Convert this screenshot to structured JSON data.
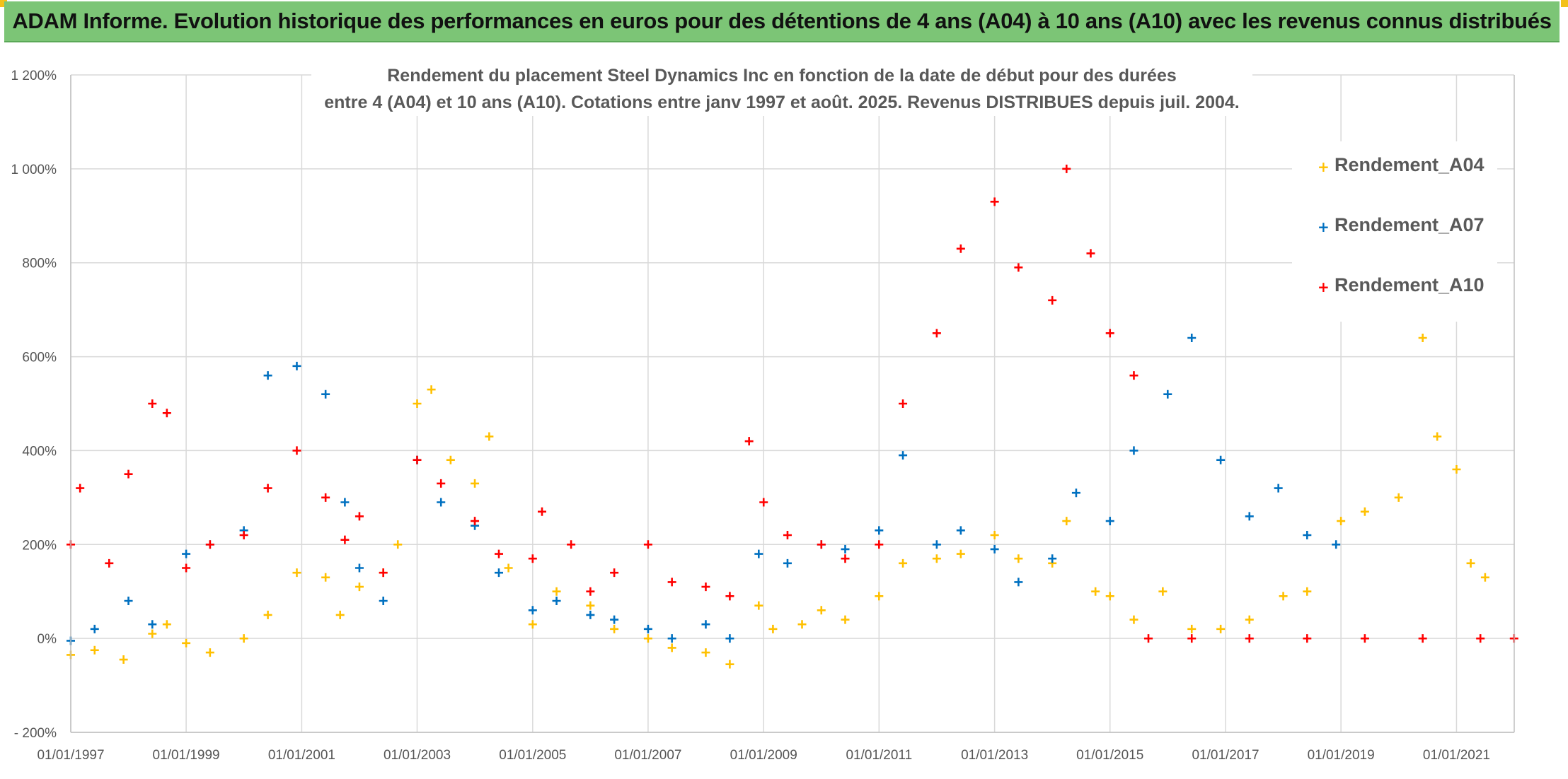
{
  "banner": {
    "title": "ADAM Informe. Evolution historique des performances en euros pour des détentions de 4 ans (A04) à 10 ans (A10) avec les revenus connus distribués"
  },
  "chart_data": {
    "type": "scatter",
    "title_line1": "Rendement du placement Steel Dynamics Inc en fonction de la date de début pour des durées",
    "title_line2": "entre 4 (A04) et 10 ans (A10). Cotations entre janv 1997 et août. 2025. Revenus DISTRIBUES depuis juil. 2004.",
    "xlabel": "",
    "ylabel": "",
    "x_range": [
      "1997-01-01",
      "2022-01-01"
    ],
    "ylim": [
      -200,
      1200
    ],
    "y_ticks": [
      -200,
      0,
      200,
      400,
      600,
      800,
      1000,
      1200
    ],
    "y_tick_labels": [
      "- 200%",
      "0%",
      "200%",
      "400%",
      "600%",
      "800%",
      "1 000%",
      "1 200%"
    ],
    "x_ticks": [
      "1997-01-01",
      "1999-01-01",
      "2001-01-01",
      "2003-01-01",
      "2005-01-01",
      "2007-01-01",
      "2009-01-01",
      "2011-01-01",
      "2013-01-01",
      "2015-01-01",
      "2017-01-01",
      "2019-01-01",
      "2021-01-01"
    ],
    "x_tick_labels": [
      "01/01/1997",
      "01/01/1999",
      "01/01/2001",
      "01/01/2003",
      "01/01/2005",
      "01/01/2007",
      "01/01/2009",
      "01/01/2011",
      "01/01/2013",
      "01/01/2015",
      "01/01/2017",
      "01/01/2019",
      "01/01/2021"
    ],
    "grid": true,
    "legend_position": "right",
    "marker": "+",
    "series": [
      {
        "name": "Rendement_A04",
        "color": "#ffc000",
        "points": [
          [
            "1997-01-01",
            -35
          ],
          [
            "1997-06-01",
            -25
          ],
          [
            "1997-12-01",
            -45
          ],
          [
            "1998-06-01",
            10
          ],
          [
            "1998-09-01",
            30
          ],
          [
            "1999-01-01",
            -10
          ],
          [
            "1999-06-01",
            -30
          ],
          [
            "2000-01-01",
            0
          ],
          [
            "2000-06-01",
            50
          ],
          [
            "2000-12-01",
            140
          ],
          [
            "2001-06-01",
            130
          ],
          [
            "2001-09-01",
            50
          ],
          [
            "2002-01-01",
            110
          ],
          [
            "2002-06-01",
            140
          ],
          [
            "2002-09-01",
            200
          ],
          [
            "2003-01-01",
            500
          ],
          [
            "2003-04-01",
            530
          ],
          [
            "2003-08-01",
            380
          ],
          [
            "2004-01-01",
            330
          ],
          [
            "2004-04-01",
            430
          ],
          [
            "2004-08-01",
            150
          ],
          [
            "2005-01-01",
            30
          ],
          [
            "2005-06-01",
            100
          ],
          [
            "2006-01-01",
            70
          ],
          [
            "2006-06-01",
            20
          ],
          [
            "2007-01-01",
            0
          ],
          [
            "2007-06-01",
            -20
          ],
          [
            "2008-01-01",
            -30
          ],
          [
            "2008-06-01",
            -55
          ],
          [
            "2008-12-01",
            70
          ],
          [
            "2009-03-01",
            20
          ],
          [
            "2009-09-01",
            30
          ],
          [
            "2010-01-01",
            60
          ],
          [
            "2010-06-01",
            40
          ],
          [
            "2011-01-01",
            90
          ],
          [
            "2011-06-01",
            160
          ],
          [
            "2012-01-01",
            170
          ],
          [
            "2012-06-01",
            180
          ],
          [
            "2013-01-01",
            220
          ],
          [
            "2013-06-01",
            170
          ],
          [
            "2014-01-01",
            160
          ],
          [
            "2014-04-01",
            250
          ],
          [
            "2014-10-01",
            100
          ],
          [
            "2015-01-01",
            90
          ],
          [
            "2015-06-01",
            40
          ],
          [
            "2015-12-01",
            100
          ],
          [
            "2016-06-01",
            20
          ],
          [
            "2016-12-01",
            20
          ],
          [
            "2017-06-01",
            40
          ],
          [
            "2018-01-01",
            90
          ],
          [
            "2018-06-01",
            100
          ],
          [
            "2019-01-01",
            250
          ],
          [
            "2019-06-01",
            270
          ],
          [
            "2020-01-01",
            300
          ],
          [
            "2020-06-01",
            640
          ],
          [
            "2020-09-01",
            430
          ],
          [
            "2021-01-01",
            360
          ],
          [
            "2021-04-01",
            160
          ],
          [
            "2021-07-01",
            130
          ]
        ]
      },
      {
        "name": "Rendement_A07",
        "color": "#0070c0",
        "points": [
          [
            "1997-01-01",
            -5
          ],
          [
            "1997-06-01",
            20
          ],
          [
            "1998-01-01",
            80
          ],
          [
            "1998-06-01",
            30
          ],
          [
            "1999-01-01",
            180
          ],
          [
            "1999-06-01",
            200
          ],
          [
            "2000-01-01",
            230
          ],
          [
            "2000-06-01",
            560
          ],
          [
            "2000-12-01",
            580
          ],
          [
            "2001-06-01",
            520
          ],
          [
            "2001-10-01",
            290
          ],
          [
            "2002-01-01",
            150
          ],
          [
            "2002-06-01",
            80
          ],
          [
            "2003-01-01",
            380
          ],
          [
            "2003-06-01",
            290
          ],
          [
            "2004-01-01",
            240
          ],
          [
            "2004-06-01",
            140
          ],
          [
            "2005-01-01",
            60
          ],
          [
            "2005-06-01",
            80
          ],
          [
            "2006-01-01",
            50
          ],
          [
            "2006-06-01",
            40
          ],
          [
            "2007-01-01",
            20
          ],
          [
            "2007-06-01",
            0
          ],
          [
            "2008-01-01",
            30
          ],
          [
            "2008-06-01",
            0
          ],
          [
            "2008-12-01",
            180
          ],
          [
            "2009-06-01",
            160
          ],
          [
            "2010-01-01",
            200
          ],
          [
            "2010-06-01",
            190
          ],
          [
            "2011-01-01",
            230
          ],
          [
            "2011-06-01",
            390
          ],
          [
            "2012-01-01",
            200
          ],
          [
            "2012-06-01",
            230
          ],
          [
            "2013-01-01",
            190
          ],
          [
            "2013-06-01",
            120
          ],
          [
            "2014-01-01",
            170
          ],
          [
            "2014-06-01",
            310
          ],
          [
            "2015-01-01",
            250
          ],
          [
            "2015-06-01",
            400
          ],
          [
            "2016-01-01",
            520
          ],
          [
            "2016-06-01",
            640
          ],
          [
            "2016-12-01",
            380
          ],
          [
            "2017-06-01",
            260
          ],
          [
            "2017-12-01",
            320
          ],
          [
            "2018-06-01",
            220
          ],
          [
            "2018-12-01",
            200
          ]
        ]
      },
      {
        "name": "Rendement_A10",
        "color": "#ff0000",
        "points": [
          [
            "1997-01-01",
            200
          ],
          [
            "1997-03-01",
            320
          ],
          [
            "1997-09-01",
            160
          ],
          [
            "1998-01-01",
            350
          ],
          [
            "1998-06-01",
            500
          ],
          [
            "1998-09-01",
            480
          ],
          [
            "1999-01-01",
            150
          ],
          [
            "1999-06-01",
            200
          ],
          [
            "2000-01-01",
            220
          ],
          [
            "2000-06-01",
            320
          ],
          [
            "2000-12-01",
            400
          ],
          [
            "2001-06-01",
            300
          ],
          [
            "2001-10-01",
            210
          ],
          [
            "2002-01-01",
            260
          ],
          [
            "2002-06-01",
            140
          ],
          [
            "2003-01-01",
            380
          ],
          [
            "2003-06-01",
            330
          ],
          [
            "2004-01-01",
            250
          ],
          [
            "2004-06-01",
            180
          ],
          [
            "2005-01-01",
            170
          ],
          [
            "2005-03-01",
            270
          ],
          [
            "2005-09-01",
            200
          ],
          [
            "2006-01-01",
            100
          ],
          [
            "2006-06-01",
            140
          ],
          [
            "2007-01-01",
            200
          ],
          [
            "2007-06-01",
            120
          ],
          [
            "2008-01-01",
            110
          ],
          [
            "2008-06-01",
            90
          ],
          [
            "2008-10-01",
            420
          ],
          [
            "2009-01-01",
            290
          ],
          [
            "2009-06-01",
            220
          ],
          [
            "2010-01-01",
            200
          ],
          [
            "2010-06-01",
            170
          ],
          [
            "2011-01-01",
            200
          ],
          [
            "2011-06-01",
            500
          ],
          [
            "2012-01-01",
            650
          ],
          [
            "2012-06-01",
            830
          ],
          [
            "2013-01-01",
            930
          ],
          [
            "2013-06-01",
            790
          ],
          [
            "2014-01-01",
            720
          ],
          [
            "2014-04-01",
            1000
          ],
          [
            "2014-09-01",
            820
          ],
          [
            "2015-01-01",
            650
          ],
          [
            "2015-06-01",
            560
          ],
          [
            "2015-09-01",
            0
          ],
          [
            "2016-06-01",
            0
          ],
          [
            "2017-06-01",
            0
          ],
          [
            "2018-06-01",
            0
          ],
          [
            "2019-06-01",
            0
          ],
          [
            "2020-06-01",
            0
          ],
          [
            "2021-06-01",
            0
          ],
          [
            "2021-12-31",
            0
          ]
        ]
      }
    ]
  }
}
